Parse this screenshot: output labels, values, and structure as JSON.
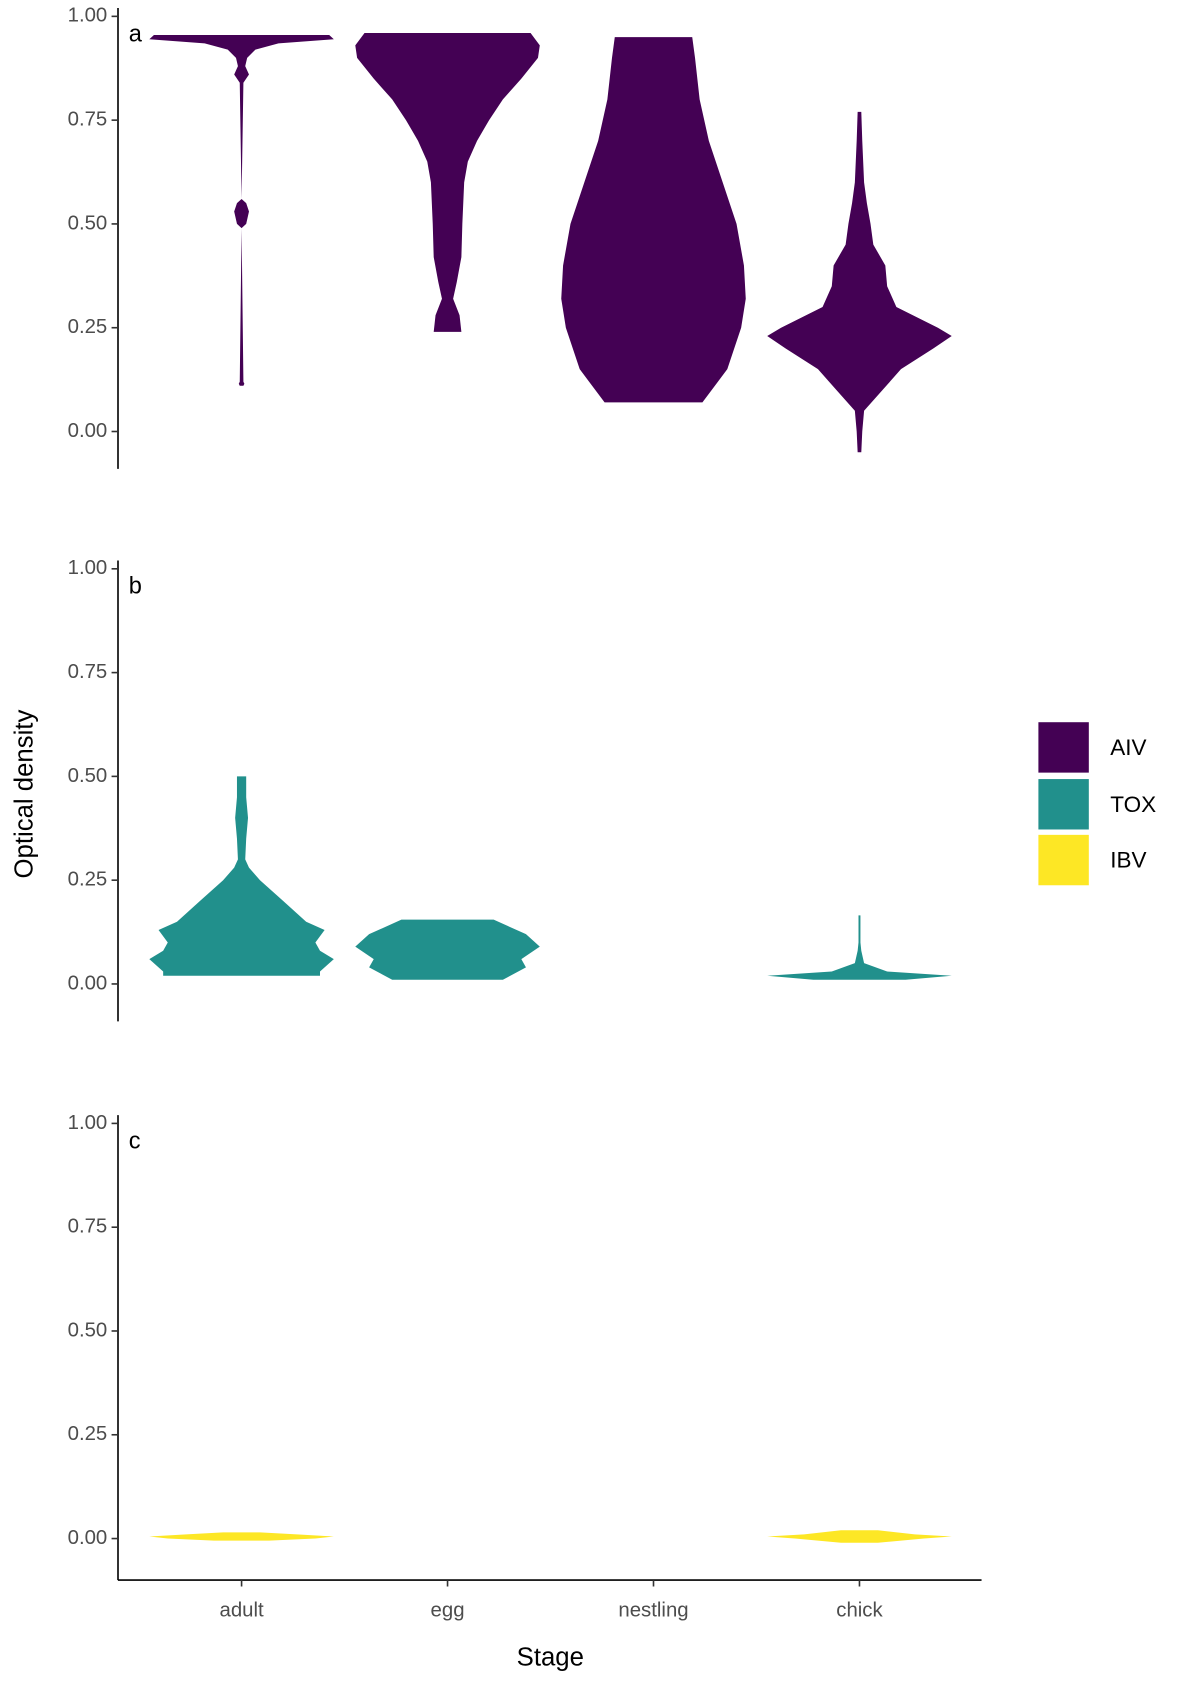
{
  "chart_data": [
    {
      "type": "violin",
      "panel_label": "a",
      "categories": [
        "adult",
        "egg",
        "nestling",
        "chick"
      ],
      "ylim": [
        -0.09,
        1.02
      ],
      "yticks": [
        {
          "value": 0,
          "label": "0.00"
        },
        {
          "value": 0.25,
          "label": "0.25"
        },
        {
          "value": 0.5,
          "label": "0.50"
        },
        {
          "value": 0.75,
          "label": "0.75"
        },
        {
          "value": 1,
          "label": "1.00"
        }
      ],
      "series": [
        {
          "name": "AIV",
          "color": "#440154",
          "violins": [
            {
              "y": [
                0.11,
                0.115,
                0.12,
                0.49,
                0.5,
                0.53,
                0.55,
                0.56,
                0.84,
                0.86,
                0.88,
                0.9,
                0.92,
                0.935,
                0.945,
                0.955
              ],
              "density": [
                0.02,
                0.03,
                0.02,
                0,
                0.05,
                0.08,
                0.05,
                0,
                0.02,
                0.08,
                0.04,
                0.06,
                0.15,
                0.4,
                1,
                0.95
              ]
            },
            {
              "y": [
                0.24,
                0.28,
                0.32,
                0.36,
                0.42,
                0.5,
                0.6,
                0.65,
                0.7,
                0.75,
                0.8,
                0.85,
                0.9,
                0.93,
                0.96
              ],
              "density": [
                0.15,
                0.13,
                0.06,
                0.1,
                0.15,
                0.16,
                0.18,
                0.22,
                0.32,
                0.45,
                0.6,
                0.8,
                0.98,
                1,
                0.9
              ]
            },
            {
              "y": [
                0.07,
                0.15,
                0.25,
                0.32,
                0.4,
                0.5,
                0.6,
                0.7,
                0.8,
                0.9,
                0.95
              ],
              "density": [
                0.53,
                0.8,
                0.95,
                1,
                0.98,
                0.9,
                0.75,
                0.6,
                0.5,
                0.45,
                0.42
              ]
            },
            {
              "y": [
                -0.05,
                0,
                0.05,
                0.1,
                0.15,
                0.2,
                0.23,
                0.25,
                0.3,
                0.35,
                0.4,
                0.45,
                0.5,
                0.55,
                0.6,
                0.7,
                0.77
              ],
              "density": [
                0.02,
                0.03,
                0.05,
                0.25,
                0.45,
                0.8,
                1,
                0.85,
                0.4,
                0.3,
                0.28,
                0.15,
                0.12,
                0.08,
                0.05,
                0.03,
                0.02
              ]
            }
          ]
        }
      ]
    },
    {
      "type": "violin",
      "panel_label": "b",
      "y_label": "Optical density",
      "categories": [
        "adult",
        "egg",
        "nestling",
        "chick"
      ],
      "ylim": [
        -0.09,
        1.02
      ],
      "yticks": [
        {
          "value": 0,
          "label": "0.00"
        },
        {
          "value": 0.25,
          "label": "0.25"
        },
        {
          "value": 0.5,
          "label": "0.50"
        },
        {
          "value": 0.75,
          "label": "0.75"
        },
        {
          "value": 1,
          "label": "1.00"
        }
      ],
      "series": [
        {
          "name": "TOX",
          "color": "#21908c",
          "violins": [
            {
              "y": [
                0.02,
                0.03,
                0.06,
                0.08,
                0.1,
                0.13,
                0.15,
                0.2,
                0.25,
                0.28,
                0.3,
                0.35,
                0.4,
                0.45,
                0.5
              ],
              "density": [
                0.85,
                0.85,
                1,
                0.85,
                0.8,
                0.9,
                0.7,
                0.45,
                0.2,
                0.08,
                0.04,
                0.05,
                0.07,
                0.05,
                0.05
              ]
            },
            {
              "y": [
                0.01,
                0.04,
                0.06,
                0.09,
                0.12,
                0.155
              ],
              "density": [
                0.6,
                0.85,
                0.8,
                1,
                0.85,
                0.5
              ]
            },
            null,
            {
              "y": [
                0.01,
                0.02,
                0.03,
                0.05,
                0.08,
                0.1,
                0.15,
                0.165
              ],
              "density": [
                0.5,
                1,
                0.3,
                0.05,
                0.02,
                0.01,
                0.01,
                0.01
              ]
            }
          ]
        }
      ]
    },
    {
      "type": "violin",
      "panel_label": "c",
      "x_label": "Stage",
      "categories": [
        "adult",
        "egg",
        "nestling",
        "chick"
      ],
      "ylim": [
        -0.1,
        1.02
      ],
      "yticks": [
        {
          "value": 0,
          "label": "0.00"
        },
        {
          "value": 0.25,
          "label": "0.25"
        },
        {
          "value": 0.5,
          "label": "0.50"
        },
        {
          "value": 0.75,
          "label": "0.75"
        },
        {
          "value": 1,
          "label": "1.00"
        }
      ],
      "series": [
        {
          "name": "IBV",
          "color": "#fde725",
          "violins": [
            {
              "y": [
                -0.005,
                0,
                0.005,
                0.01,
                0.015
              ],
              "density": [
                0.3,
                0.8,
                1,
                0.6,
                0.2
              ]
            },
            null,
            null,
            {
              "y": [
                -0.01,
                0,
                0.005,
                0.01,
                0.02
              ],
              "density": [
                0.2,
                0.7,
                1,
                0.6,
                0.2
              ]
            }
          ]
        }
      ]
    }
  ]
}
